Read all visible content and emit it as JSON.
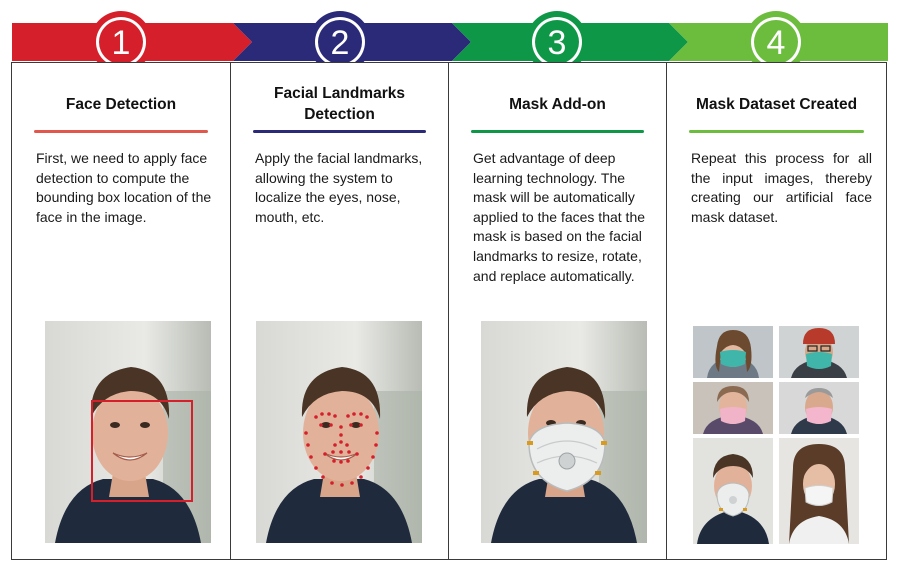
{
  "steps": [
    {
      "number": "1",
      "title": "Face Detection",
      "description": "First, we need to apply face detection to compute the bounding box location of the face in the image.",
      "color": "#d5202b",
      "rule_color": "#e2574c",
      "image": "man-face-with-bounding-box"
    },
    {
      "number": "2",
      "title": "Facial Landmarks Detection",
      "description": "Apply the facial landmarks, allowing the system to localize the eyes, nose, mouth, etc.",
      "color": "#2b2a78",
      "rule_color": "#2b2a78",
      "image": "man-face-with-landmark-dots"
    },
    {
      "number": "3",
      "title": "Mask Add-on",
      "description": "Get advantage of deep learning technology. The mask will be automatically applied to the faces that the mask is based on the facial landmarks to resize, rotate, and replace automatically.",
      "color": "#0f9748",
      "rule_color": "#0f9748",
      "image": "man-face-with-respirator-mask"
    },
    {
      "number": "4",
      "title": "Mask Dataset Created",
      "description": "Repeat this process for all the input images, thereby creating our artificial face mask dataset.",
      "color": "#6cbc3d",
      "rule_color": "#6cbc3d",
      "image": "masked-faces-grid"
    }
  ]
}
